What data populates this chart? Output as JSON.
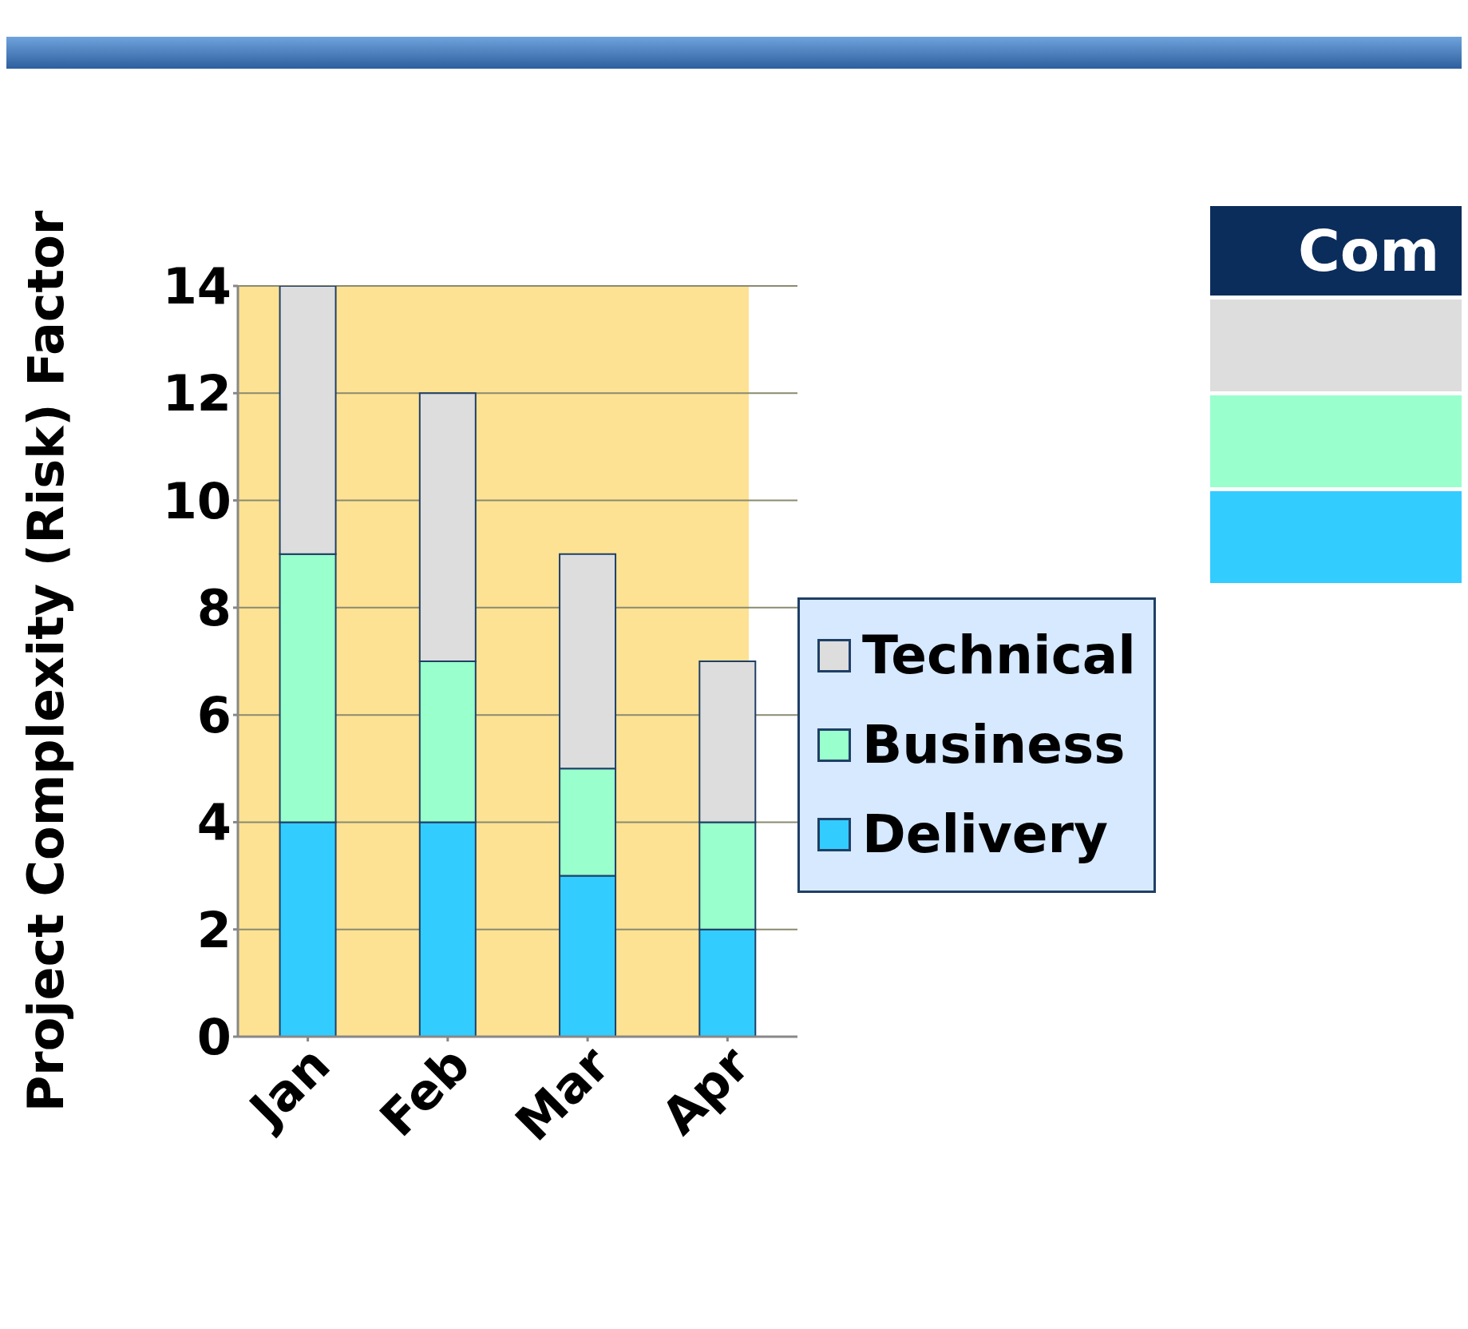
{
  "chart_data": {
    "type": "bar",
    "stacked": true,
    "ylabel": "Project Complexity (Risk) Factor",
    "categories": [
      "Jan",
      "Feb",
      "Mar",
      "Apr"
    ],
    "series": [
      {
        "name": "Delivery",
        "color": "#33ccff",
        "values": [
          4,
          4,
          3,
          2
        ]
      },
      {
        "name": "Business",
        "color": "#99ffcc",
        "values": [
          5,
          3,
          2,
          2
        ]
      },
      {
        "name": "Technical",
        "color": "#dddddd",
        "values": [
          5,
          5,
          4,
          3
        ]
      }
    ],
    "ylim": [
      0,
      14
    ],
    "yticks": [
      0,
      2,
      4,
      6,
      8,
      10,
      12,
      14
    ],
    "grid": "y",
    "legend": "right",
    "annotations": [
      "Com"
    ]
  }
}
